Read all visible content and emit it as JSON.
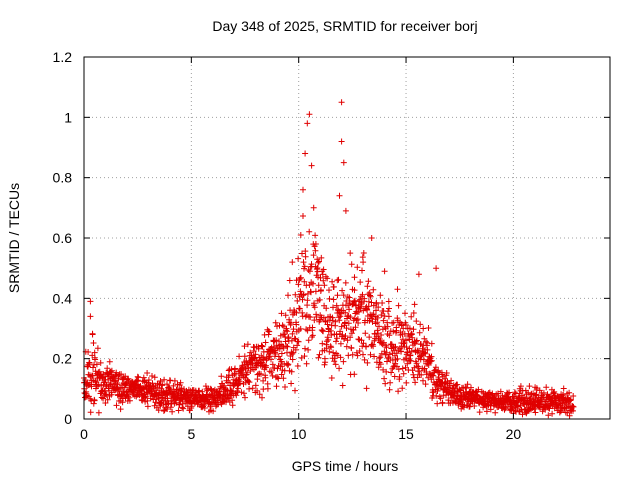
{
  "chart_data": {
    "type": "scatter",
    "title": "Day 348 of 2025, SRMTID for receiver borj",
    "xlabel": "GPS time / hours",
    "ylabel": "SRMTID / TECUs",
    "xlim": [
      0,
      24.5
    ],
    "ylim": [
      0,
      1.2
    ],
    "x_ticks": [
      0,
      5,
      10,
      15,
      20
    ],
    "y_ticks": [
      0,
      0.2,
      0.4,
      0.6,
      0.8,
      1,
      1.2
    ],
    "x_tick_labels": [
      "0",
      "5",
      "10",
      "15",
      "20"
    ],
    "y_tick_labels": [
      "0",
      "0.2",
      "0.4",
      "0.6",
      "0.8",
      "1",
      "1.2"
    ],
    "grid": true,
    "marker": "+",
    "color": "#e00000",
    "series": [
      {
        "name": "SRMTID",
        "sample_points": [
          [
            0.0,
            0.12
          ],
          [
            0.1,
            0.09
          ],
          [
            0.2,
            0.18
          ],
          [
            0.3,
            0.39
          ],
          [
            0.3,
            0.34
          ],
          [
            0.4,
            0.28
          ],
          [
            0.5,
            0.22
          ],
          [
            0.6,
            0.15
          ],
          [
            0.8,
            0.11
          ],
          [
            1.0,
            0.13
          ],
          [
            1.2,
            0.19
          ],
          [
            1.3,
            0.16
          ],
          [
            1.5,
            0.1
          ],
          [
            1.8,
            0.08
          ],
          [
            2.0,
            0.12
          ],
          [
            2.3,
            0.09
          ],
          [
            2.5,
            0.14
          ],
          [
            2.8,
            0.07
          ],
          [
            3.0,
            0.11
          ],
          [
            3.3,
            0.08
          ],
          [
            3.6,
            0.1
          ],
          [
            3.9,
            0.06
          ],
          [
            4.2,
            0.09
          ],
          [
            4.5,
            0.12
          ],
          [
            4.8,
            0.07
          ],
          [
            5.0,
            0.05
          ],
          [
            5.3,
            0.08
          ],
          [
            5.6,
            0.06
          ],
          [
            5.9,
            0.1
          ],
          [
            6.2,
            0.07
          ],
          [
            6.5,
            0.09
          ],
          [
            6.8,
            0.12
          ],
          [
            7.0,
            0.15
          ],
          [
            7.2,
            0.13
          ],
          [
            7.5,
            0.18
          ],
          [
            7.8,
            0.21
          ],
          [
            8.0,
            0.17
          ],
          [
            8.3,
            0.24
          ],
          [
            8.6,
            0.28
          ],
          [
            8.9,
            0.22
          ],
          [
            9.2,
            0.35
          ],
          [
            9.5,
            0.41
          ],
          [
            9.7,
            0.52
          ],
          [
            9.9,
            0.46
          ],
          [
            10.1,
            0.61
          ],
          [
            10.2,
            0.76
          ],
          [
            10.3,
            0.88
          ],
          [
            10.4,
            0.98
          ],
          [
            10.5,
            1.01
          ],
          [
            10.6,
            0.84
          ],
          [
            10.7,
            0.7
          ],
          [
            10.8,
            0.58
          ],
          [
            10.9,
            0.47
          ],
          [
            11.0,
            0.33
          ],
          [
            11.1,
            0.25
          ],
          [
            11.2,
            0.18
          ],
          [
            11.4,
            0.29
          ],
          [
            11.6,
            0.37
          ],
          [
            11.8,
            0.46
          ],
          [
            11.9,
            0.74
          ],
          [
            12.0,
            1.05
          ],
          [
            12.0,
            0.92
          ],
          [
            12.1,
            0.85
          ],
          [
            12.2,
            0.69
          ],
          [
            12.4,
            0.55
          ],
          [
            12.6,
            0.47
          ],
          [
            12.8,
            0.39
          ],
          [
            13.0,
            0.52
          ],
          [
            13.2,
            0.44
          ],
          [
            13.4,
            0.6
          ],
          [
            13.6,
            0.36
          ],
          [
            13.8,
            0.41
          ],
          [
            14.0,
            0.49
          ],
          [
            14.2,
            0.34
          ],
          [
            14.4,
            0.29
          ],
          [
            14.6,
            0.43
          ],
          [
            14.8,
            0.31
          ],
          [
            15.0,
            0.26
          ],
          [
            15.2,
            0.21
          ],
          [
            15.4,
            0.38
          ],
          [
            15.6,
            0.48
          ],
          [
            15.8,
            0.3
          ],
          [
            16.0,
            0.19
          ],
          [
            16.2,
            0.25
          ],
          [
            16.4,
            0.5
          ],
          [
            16.5,
            0.16
          ],
          [
            16.7,
            0.12
          ],
          [
            17.0,
            0.09
          ],
          [
            17.3,
            0.11
          ],
          [
            17.6,
            0.08
          ],
          [
            18.0,
            0.06
          ],
          [
            18.3,
            0.09
          ],
          [
            18.6,
            0.05
          ],
          [
            19.0,
            0.07
          ],
          [
            19.3,
            0.04
          ],
          [
            19.7,
            0.08
          ],
          [
            20.0,
            0.06
          ],
          [
            20.3,
            0.1
          ],
          [
            20.6,
            0.05
          ],
          [
            21.0,
            0.08
          ],
          [
            21.3,
            0.06
          ],
          [
            21.6,
            0.04
          ],
          [
            21.9,
            0.09
          ],
          [
            22.2,
            0.05
          ],
          [
            22.5,
            0.07
          ],
          [
            22.8,
            0.04
          ]
        ]
      }
    ],
    "envelope": {
      "description_hours": [
        0,
        0.5,
        1,
        2,
        3,
        4,
        5,
        6,
        6.8,
        7.5,
        8.5,
        9.5,
        10,
        10.5,
        11,
        11.5,
        12,
        12.5,
        13,
        13.5,
        14,
        14.5,
        15,
        15.5,
        16,
        16.5,
        17,
        18,
        19,
        20,
        21,
        22,
        22.8
      ],
      "median_tecu": [
        0.12,
        0.15,
        0.12,
        0.1,
        0.09,
        0.08,
        0.07,
        0.07,
        0.1,
        0.15,
        0.2,
        0.25,
        0.35,
        0.45,
        0.38,
        0.3,
        0.3,
        0.32,
        0.33,
        0.3,
        0.27,
        0.25,
        0.24,
        0.22,
        0.18,
        0.12,
        0.09,
        0.07,
        0.06,
        0.06,
        0.06,
        0.06,
        0.05
      ],
      "spread_tecu": [
        0.07,
        0.12,
        0.07,
        0.05,
        0.05,
        0.05,
        0.04,
        0.04,
        0.06,
        0.08,
        0.1,
        0.14,
        0.22,
        0.25,
        0.18,
        0.16,
        0.18,
        0.18,
        0.17,
        0.16,
        0.14,
        0.12,
        0.12,
        0.12,
        0.12,
        0.06,
        0.04,
        0.04,
        0.03,
        0.04,
        0.04,
        0.04,
        0.03
      ]
    }
  }
}
